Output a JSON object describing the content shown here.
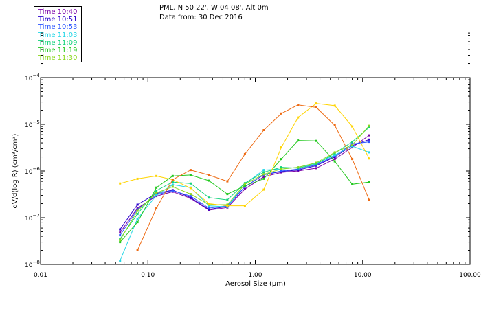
{
  "header": {
    "location": "PML, N 50 22', W 04 08', Alt 0m",
    "date_line": "Data from: 30 Dec 2016"
  },
  "legend": [
    {
      "label": "Time 10:40",
      "color": "#7a00a8"
    },
    {
      "label": "Time 10:51",
      "color": "#2a00cc"
    },
    {
      "label": "Time 10:53",
      "color": "#2b55ff"
    },
    {
      "label": "Time 11:03",
      "color": "#22d6e6"
    },
    {
      "label": "Time 11:09",
      "color": "#10d27a"
    },
    {
      "label": "Time 11:19",
      "color": "#22c81e"
    },
    {
      "label": "Time 11:30",
      "color": "#8ad81c"
    }
  ],
  "chart_data": {
    "type": "line",
    "title": "",
    "xlabel": "Aerosol Size (μm)",
    "ylabel": "dV/d(log R) (cm³/cm³)",
    "xscale": "log",
    "yscale": "log",
    "xlim": [
      0.01,
      100
    ],
    "ylim": [
      1e-08,
      0.0001
    ],
    "xticks": [
      {
        "value": 0.01,
        "label": "0.01"
      },
      {
        "value": 0.1,
        "label": "0.10"
      },
      {
        "value": 1,
        "label": "1.00"
      },
      {
        "value": 10,
        "label": "10.00"
      },
      {
        "value": 100,
        "label": "100.00"
      }
    ],
    "yticks": [
      {
        "value": 1e-08,
        "mantissa": "10",
        "exponent": "−8"
      },
      {
        "value": 1e-07,
        "mantissa": "10",
        "exponent": "−7"
      },
      {
        "value": 1e-06,
        "mantissa": "10",
        "exponent": "−6"
      },
      {
        "value": 1e-05,
        "mantissa": "10",
        "exponent": "−5"
      },
      {
        "value": 0.0001,
        "mantissa": "10",
        "exponent": "−4"
      }
    ],
    "series": [
      {
        "name": "Time 10:40",
        "color": "#7a00a8",
        "x": [
          0.055,
          0.08,
          0.12,
          0.17,
          0.25,
          0.37,
          0.55,
          0.8,
          1.2,
          1.75,
          2.5,
          3.7,
          5.5,
          8.0,
          11.5
        ],
        "y": [
          4.8e-08,
          1.6e-07,
          2.9e-07,
          3.6e-07,
          2.6e-07,
          1.45e-07,
          1.65e-07,
          4.1e-07,
          7.5e-07,
          9.3e-07,
          1e-06,
          1.15e-06,
          1.8e-06,
          3.2e-06,
          5.8e-06
        ]
      },
      {
        "name": "Time 10:51",
        "color": "#2a00cc",
        "x": [
          0.055,
          0.08,
          0.12,
          0.17,
          0.25,
          0.37,
          0.55,
          0.8,
          1.2,
          1.75,
          2.5,
          3.7,
          5.5,
          8.0,
          11.5
        ],
        "y": [
          5.6e-08,
          1.9e-07,
          3.3e-07,
          3.9e-07,
          2.7e-07,
          1.5e-07,
          1.75e-07,
          4.6e-07,
          8.3e-07,
          9.7e-07,
          1.05e-06,
          1.3e-06,
          2e-06,
          3.5e-06,
          4.7e-06
        ]
      },
      {
        "name": "Time 10:53",
        "color": "#2b55ff",
        "x": [
          0.055,
          0.08,
          0.12,
          0.17,
          0.25,
          0.37,
          0.55,
          0.8,
          1.2,
          1.75,
          2.5,
          3.7,
          5.5,
          8.0,
          11.5
        ],
        "y": [
          4.2e-08,
          1.5e-07,
          3.1e-07,
          3.8e-07,
          2.9e-07,
          1.6e-07,
          1.8e-07,
          4.6e-07,
          8.3e-07,
          1e-06,
          1.1e-06,
          1.35e-06,
          2.1e-06,
          3.8e-06,
          4.2e-06
        ]
      },
      {
        "name": "Time 11:03",
        "color": "#22d6e6",
        "x": [
          0.055,
          0.08,
          0.12,
          0.17,
          0.25,
          0.37,
          0.55,
          0.8,
          1.2,
          1.75,
          2.5,
          3.7,
          5.5,
          8.0,
          11.5
        ],
        "y": [
          1.2e-08,
          9.5e-08,
          3e-07,
          5.1e-07,
          4.4e-07,
          1.8e-07,
          1.7e-07,
          5.3e-07,
          1.05e-06,
          1.1e-06,
          1.2e-06,
          1.45e-06,
          2.2e-06,
          3.4e-06,
          2.5e-06
        ]
      },
      {
        "name": "Time 11:09",
        "color": "#10d27a",
        "x": [
          0.055,
          0.08,
          0.12,
          0.17,
          0.25,
          0.37,
          0.55,
          0.8,
          1.2,
          1.75,
          2.5,
          3.7,
          5.5,
          8.0,
          11.5
        ],
        "y": [
          3.5e-08,
          1.2e-07,
          3.8e-07,
          5.8e-07,
          5.4e-07,
          2.7e-07,
          2.4e-07,
          5.5e-07,
          9.4e-07,
          1.2e-06,
          1.15e-06,
          1.4e-06,
          2.4e-06,
          4.2e-06,
          8.6e-06
        ]
      },
      {
        "name": "Time 11:19",
        "color": "#22c81e",
        "x": [
          0.055,
          0.08,
          0.12,
          0.17,
          0.25,
          0.37,
          0.55,
          0.8,
          1.2,
          1.75,
          2.5,
          3.7,
          5.5,
          8.0,
          11.5
        ],
        "y": [
          3e-08,
          8e-08,
          4.4e-07,
          7.8e-07,
          8.2e-07,
          6.2e-07,
          3.2e-07,
          4.8e-07,
          6.8e-07,
          1.8e-06,
          4.5e-06,
          4.4e-06,
          1.6e-06,
          5.2e-07,
          5.8e-07
        ]
      },
      {
        "name": "Time 11:30",
        "color": "#8ad81c",
        "x": [
          0.055,
          0.08,
          0.12,
          0.17,
          0.25,
          0.37,
          0.55,
          0.8,
          1.2,
          1.75,
          2.5,
          3.7,
          5.5,
          8.0,
          11.5
        ],
        "y": [
          3.3e-08,
          1.4e-07,
          3.4e-07,
          4.6e-07,
          3.2e-07,
          1.9e-07,
          1.9e-07,
          5.2e-07,
          8.5e-07,
          1.1e-06,
          1.2e-06,
          1.5e-06,
          2.5e-06,
          3.6e-06,
          9.3e-06
        ]
      },
      {
        "name": "",
        "color": "#ffd400",
        "x": [
          0.055,
          0.08,
          0.12,
          0.17,
          0.25,
          0.37,
          0.55,
          0.8,
          1.2,
          1.75,
          2.5,
          3.7,
          5.5,
          8.0,
          11.5
        ],
        "y": [
          5.4e-07,
          6.8e-07,
          7.8e-07,
          6.5e-07,
          4.3e-07,
          2e-07,
          1.8e-07,
          1.8e-07,
          4e-07,
          3.2e-06,
          1.4e-05,
          2.8e-05,
          2.5e-05,
          9e-06,
          1.85e-06
        ]
      },
      {
        "name": "",
        "color": "#ee6a12",
        "x": [
          0.08,
          0.12,
          0.17,
          0.25,
          0.37,
          0.55,
          0.8,
          1.2,
          1.75,
          2.5,
          3.7,
          5.5,
          8.0,
          11.5
        ],
        "y": [
          2e-08,
          1.6e-07,
          6.5e-07,
          1.05e-06,
          8.2e-07,
          6e-07,
          2.3e-06,
          7.5e-06,
          1.7e-05,
          2.6e-05,
          2.3e-05,
          9.5e-06,
          1.8e-06,
          2.4e-07
        ]
      }
    ]
  }
}
